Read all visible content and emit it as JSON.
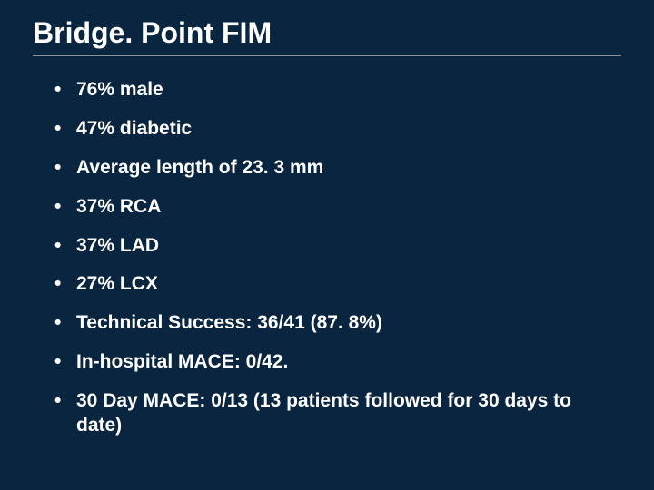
{
  "slide": {
    "title": "Bridge. Point FIM",
    "background_color": "#0a2540",
    "text_color": "#ffffff",
    "rule_color": "#8a8f95",
    "title_fontsize": 32,
    "bullet_fontsize": 21,
    "bullets": [
      "76% male",
      "47% diabetic",
      "Average length of 23. 3 mm",
      "37% RCA",
      "37% LAD",
      "27% LCX",
      "Technical Success: 36/41 (87. 8%)",
      "In-hospital MACE:  0/42.",
      "30 Day MACE:  0/13 (13 patients followed for 30 days to date)"
    ]
  }
}
